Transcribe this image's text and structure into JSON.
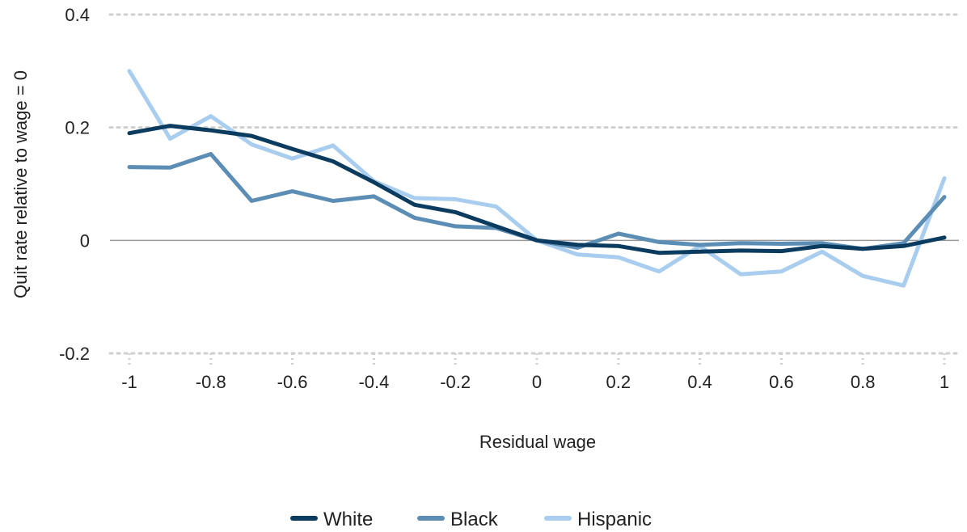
{
  "chart_data": {
    "type": "line",
    "title": "",
    "xlabel": "Residual wage",
    "ylabel": "Quit rate relative to wage = 0",
    "xlim": [
      -1,
      1
    ],
    "ylim": [
      -0.2,
      0.4
    ],
    "x_ticks": [
      -1,
      -0.8,
      -0.6,
      -0.4,
      -0.2,
      0,
      0.2,
      0.4,
      0.6,
      0.8,
      1
    ],
    "x_tick_labels": [
      "-1",
      "-0.8",
      "-0.6",
      "-0.4",
      "-0.2",
      "0",
      "0.2",
      "0.4",
      "0.6",
      "0.8",
      "1"
    ],
    "y_ticks": [
      -0.2,
      0,
      0.2,
      0.4
    ],
    "y_tick_labels": [
      "-0.2",
      "0",
      "0.2",
      "0.4"
    ],
    "grid": "horizontal dotted",
    "legend_position": "bottom",
    "x": [
      -1,
      -0.9,
      -0.8,
      -0.7,
      -0.6,
      -0.5,
      -0.4,
      -0.3,
      -0.2,
      -0.1,
      0,
      0.1,
      0.2,
      0.3,
      0.4,
      0.5,
      0.6,
      0.7,
      0.8,
      0.9,
      1
    ],
    "series": [
      {
        "name": "White",
        "color": "#0b3b5e",
        "values": [
          0.19,
          0.203,
          0.195,
          0.185,
          0.162,
          0.14,
          0.103,
          0.063,
          0.05,
          0.025,
          0.0,
          -0.008,
          -0.01,
          -0.022,
          -0.02,
          -0.018,
          -0.019,
          -0.01,
          -0.015,
          -0.01,
          0.005
        ]
      },
      {
        "name": "Black",
        "color": "#5b8db5",
        "values": [
          0.13,
          0.129,
          0.153,
          0.07,
          0.087,
          0.07,
          0.078,
          0.04,
          0.025,
          0.022,
          0.0,
          -0.013,
          0.012,
          -0.003,
          -0.008,
          -0.005,
          -0.006,
          -0.005,
          -0.015,
          -0.005,
          0.077
        ]
      },
      {
        "name": "Hispanic",
        "color": "#a8cdee",
        "values": [
          0.3,
          0.18,
          0.22,
          0.17,
          0.145,
          0.168,
          0.105,
          0.075,
          0.073,
          0.06,
          0.0,
          -0.025,
          -0.03,
          -0.055,
          -0.01,
          -0.06,
          -0.055,
          -0.02,
          -0.063,
          -0.08,
          0.11
        ]
      }
    ]
  }
}
